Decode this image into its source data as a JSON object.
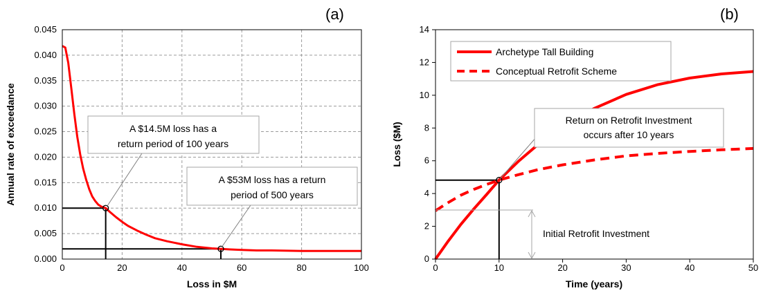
{
  "chart_data": [
    {
      "type": "line",
      "panel_label": "(a)",
      "xlabel": "Loss in $M",
      "ylabel": "Annual rate of exceedance",
      "xlim": [
        0,
        100
      ],
      "ylim": [
        0,
        0.045
      ],
      "x_ticks": [
        "0",
        "20",
        "40",
        "60",
        "80",
        "100"
      ],
      "y_ticks": [
        "0.000",
        "0.005",
        "0.010",
        "0.015",
        "0.020",
        "0.025",
        "0.030",
        "0.035",
        "0.040",
        "0.045"
      ],
      "grid": true,
      "colors": {
        "curve": "#ff0000",
        "grid": "#9a9a9a"
      },
      "series": [
        {
          "x": [
            0,
            1,
            2,
            3,
            4,
            5,
            6,
            7,
            8,
            9,
            10,
            11,
            12,
            13,
            14.5,
            16,
            18,
            20,
            22,
            25,
            28,
            31,
            35,
            40,
            45,
            50,
            53,
            56,
            60,
            65,
            70,
            80,
            90,
            100
          ],
          "y": [
            0.0418,
            0.0415,
            0.0385,
            0.0335,
            0.0285,
            0.024,
            0.0205,
            0.0177,
            0.0155,
            0.0137,
            0.0123,
            0.0114,
            0.0107,
            0.0103,
            0.01,
            0.0092,
            0.0082,
            0.0073,
            0.0065,
            0.0056,
            0.0048,
            0.0041,
            0.0035,
            0.0029,
            0.0024,
            0.0021,
            0.002,
            0.0019,
            0.0018,
            0.0017,
            0.0017,
            0.0016,
            0.0016,
            0.0016
          ]
        }
      ],
      "markers": [
        {
          "x": 14.5,
          "y": 0.01
        },
        {
          "x": 53,
          "y": 0.002
        }
      ],
      "annotations": [
        {
          "lines": [
            "A $14.5M loss has a",
            "return period of 100 years"
          ]
        },
        {
          "lines": [
            "A $53M loss has a return",
            "period of 500 years"
          ]
        }
      ]
    },
    {
      "type": "line",
      "panel_label": "(b)",
      "xlabel": "Time (years)",
      "ylabel": "Loss ($M)",
      "xlim": [
        0,
        50
      ],
      "ylim": [
        0,
        14
      ],
      "x_ticks": [
        "0",
        "10",
        "20",
        "30",
        "40",
        "50"
      ],
      "y_ticks": [
        "0",
        "2",
        "4",
        "6",
        "8",
        "10",
        "12",
        "14"
      ],
      "grid": false,
      "legend_position": "top-left",
      "colors": {
        "series": "#ff0000"
      },
      "series": [
        {
          "name": "Archetype Tall Building",
          "style": "solid",
          "x": [
            0,
            2,
            4,
            6,
            8,
            10,
            13,
            16,
            20,
            25,
            30,
            35,
            40,
            45,
            50
          ],
          "y": [
            0,
            1.1,
            2.12,
            3.05,
            3.92,
            4.82,
            5.95,
            6.95,
            8.1,
            9.2,
            10.05,
            10.65,
            11.05,
            11.3,
            11.45
          ]
        },
        {
          "name": "Conceptual Retrofit Scheme",
          "style": "dashed",
          "x": [
            0,
            2,
            4,
            6,
            8,
            10,
            13,
            16,
            20,
            25,
            30,
            35,
            40,
            45,
            50
          ],
          "y": [
            2.95,
            3.45,
            3.9,
            4.25,
            4.55,
            4.82,
            5.15,
            5.45,
            5.75,
            6.05,
            6.3,
            6.45,
            6.57,
            6.67,
            6.75
          ]
        }
      ],
      "marker": {
        "x": 10,
        "y": 4.82
      },
      "annotations": [
        {
          "lines": [
            "Return on Retrofit Investment",
            "occurs after 10 years"
          ]
        },
        {
          "lines": [
            "Initial Retrofit Investment"
          ]
        }
      ]
    }
  ]
}
